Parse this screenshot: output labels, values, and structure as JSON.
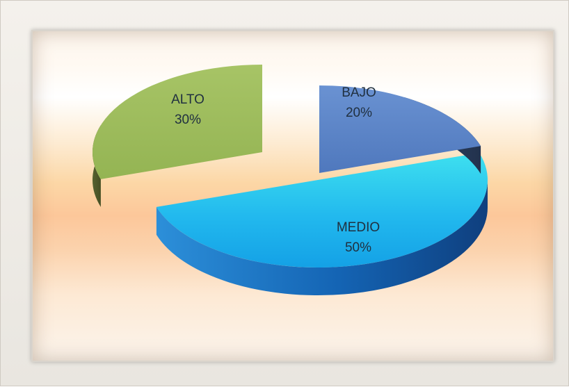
{
  "chart_data": {
    "type": "pie",
    "title": "",
    "legend": "none",
    "slices": [
      {
        "label": "BAJO",
        "value": 20,
        "display": "20%",
        "color": "#5b86c9",
        "side_color": "#2a3a5a",
        "exploded": true
      },
      {
        "label": "MEDIO",
        "value": 50,
        "display": "50%",
        "color": "#28c7ec",
        "side_color": "#1570b8",
        "exploded": false
      },
      {
        "label": "ALTO",
        "value": 30,
        "display": "30%",
        "color": "#9bbb59",
        "side_color": "#4b5528",
        "exploded": true
      }
    ]
  }
}
